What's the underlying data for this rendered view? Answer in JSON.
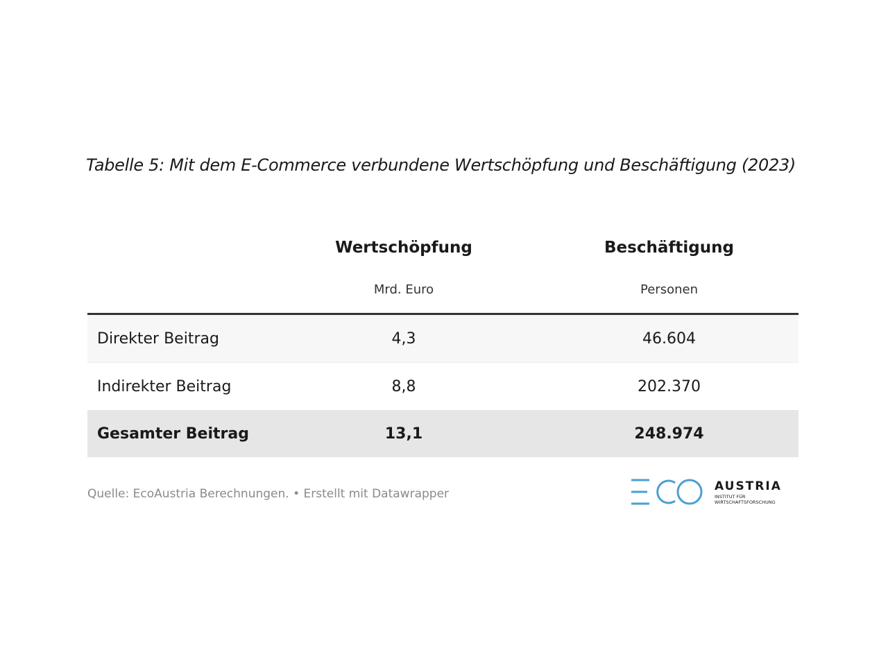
{
  "caption": "Tabelle 5: Mit dem E-Commerce verbundene Wertschöpfung und Beschäftigung (2023)",
  "table": {
    "headers": [
      "",
      "Wertschöpfung",
      "Beschäftigung"
    ],
    "units": [
      "",
      "Mrd. Euro",
      "Personen"
    ],
    "rows": [
      {
        "label": "Direkter Beitrag",
        "wertschoepfung": "4,3",
        "beschaeftigung": "46.604"
      },
      {
        "label": "Indirekter Beitrag",
        "wertschoepfung": "8,8",
        "beschaeftigung": "202.370"
      },
      {
        "label": "Gesamter Beitrag",
        "wertschoepfung": "13,1",
        "beschaeftigung": "248.974"
      }
    ]
  },
  "footer": {
    "source": "Quelle: EcoAustria Berechnungen. • Erstellt mit Datawrapper"
  },
  "logo": {
    "mark": "ECO",
    "name": "AUSTRIA",
    "line1": "INSTITUT FÜR",
    "line2": "WIRTSCHAFTSFORSCHUNG",
    "color_mark": "#4a9fd5",
    "color_text": "#1a1a1a"
  }
}
